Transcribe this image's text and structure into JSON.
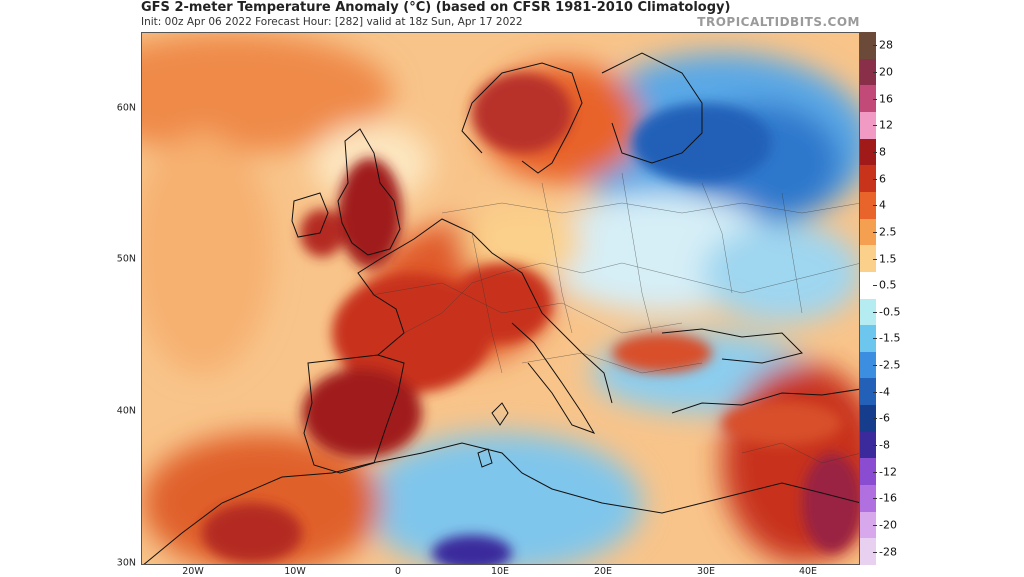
{
  "header": {
    "title": "GFS 2-meter Temperature Anomaly (°C) (based on CFSR 1981-2010 Climatology)",
    "subtitle": "Init: 00z Apr 06 2022   Forecast Hour: [282]   valid at 18z Sun, Apr 17 2022",
    "brand": "TROPICALTIDBITS.COM"
  },
  "map": {
    "region": "Europe",
    "latitude_labels": [
      "60N",
      "50N",
      "40N",
      "30N"
    ],
    "longitude_labels": [
      "20W",
      "10W",
      "0",
      "10E",
      "20E",
      "30E",
      "40E"
    ]
  },
  "colorbar": {
    "unit": "°C",
    "levels": [
      {
        "label": "28",
        "color": "#6b4a3a"
      },
      {
        "label": "20",
        "color": "#8a2f4a"
      },
      {
        "label": "16",
        "color": "#c24a78"
      },
      {
        "label": "12",
        "color": "#f09ac4"
      },
      {
        "label": "8",
        "color": "#a01a1a"
      },
      {
        "label": "6",
        "color": "#c8331c"
      },
      {
        "label": "4",
        "color": "#e8642a"
      },
      {
        "label": "2.5",
        "color": "#f5a050"
      },
      {
        "label": "1.5",
        "color": "#fbd08a"
      },
      {
        "label": "0.5",
        "color": "#ffffff"
      },
      {
        "label": "-0.5",
        "color": "#b4ecf2"
      },
      {
        "label": "-1.5",
        "color": "#6cc6ee"
      },
      {
        "label": "-2.5",
        "color": "#3c8ee0"
      },
      {
        "label": "-4",
        "color": "#2360b8"
      },
      {
        "label": "-6",
        "color": "#163c8c"
      },
      {
        "label": "-8",
        "color": "#3a2a9c"
      },
      {
        "label": "-12",
        "color": "#8a4cd0"
      },
      {
        "label": "-16",
        "color": "#b070e0"
      },
      {
        "label": "-20",
        "color": "#d8a8ec"
      },
      {
        "label": "-28",
        "color": "#e8d0f0"
      }
    ]
  }
}
